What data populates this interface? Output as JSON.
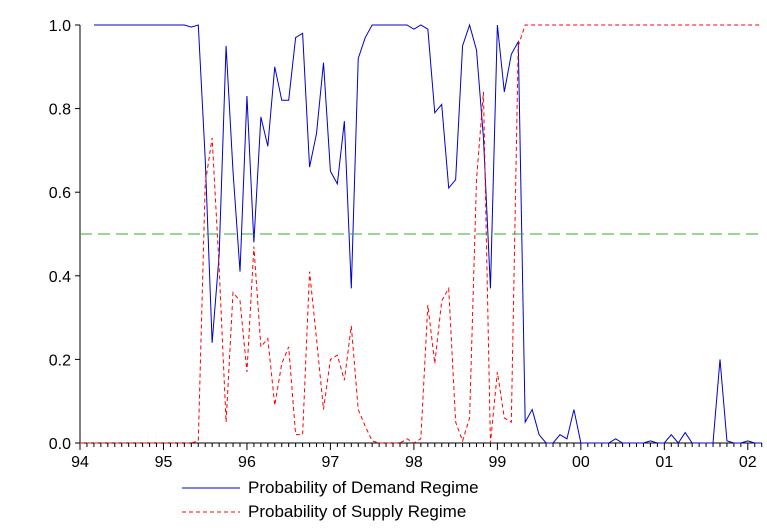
{
  "chart_data": {
    "type": "line",
    "title": "",
    "xlabel": "",
    "ylabel": "",
    "xlim": [
      1994.0,
      2002.17
    ],
    "ylim": [
      0,
      1
    ],
    "grid": false,
    "legend_position": "bottom-center",
    "x_ticks": [
      {
        "value": 1994,
        "label": "94"
      },
      {
        "value": 1995,
        "label": "95"
      },
      {
        "value": 1996,
        "label": "96"
      },
      {
        "value": 1997,
        "label": "97"
      },
      {
        "value": 1998,
        "label": "98"
      },
      {
        "value": 1999,
        "label": "99"
      },
      {
        "value": 2000,
        "label": "00"
      },
      {
        "value": 2001,
        "label": "01"
      },
      {
        "value": 2002,
        "label": "02"
      }
    ],
    "y_ticks": [
      {
        "value": 0.0,
        "label": "0.0"
      },
      {
        "value": 0.2,
        "label": "0.2"
      },
      {
        "value": 0.4,
        "label": "0.4"
      },
      {
        "value": 0.6,
        "label": "0.6"
      },
      {
        "value": 0.8,
        "label": "0.8"
      },
      {
        "value": 1.0,
        "label": "1.0"
      }
    ],
    "series": [
      {
        "name": "Probability of Demand Regime",
        "color": "#0000cc",
        "style": "solid",
        "x": [
          1994.167,
          1994.25,
          1994.333,
          1994.417,
          1994.5,
          1994.583,
          1994.667,
          1994.75,
          1994.833,
          1994.917,
          1995.0,
          1995.083,
          1995.167,
          1995.25,
          1995.333,
          1995.417,
          1995.5,
          1995.583,
          1995.667,
          1995.75,
          1995.833,
          1995.917,
          1996.0,
          1996.083,
          1996.167,
          1996.25,
          1996.333,
          1996.417,
          1996.5,
          1996.583,
          1996.667,
          1996.75,
          1996.833,
          1996.917,
          1997.0,
          1997.083,
          1997.167,
          1997.25,
          1997.333,
          1997.417,
          1997.5,
          1997.583,
          1997.667,
          1997.75,
          1997.833,
          1997.917,
          1998.0,
          1998.083,
          1998.167,
          1998.25,
          1998.333,
          1998.417,
          1998.5,
          1998.583,
          1998.667,
          1998.75,
          1998.833,
          1998.917,
          1999.0,
          1999.083,
          1999.167,
          1999.25,
          1999.333,
          1999.417,
          1999.5,
          1999.583,
          1999.667,
          1999.75,
          1999.833,
          1999.917,
          2000.0,
          2000.083,
          2000.167,
          2000.25,
          2000.333,
          2000.417,
          2000.5,
          2000.583,
          2000.667,
          2000.75,
          2000.833,
          2000.917,
          2001.0,
          2001.083,
          2001.167,
          2001.25,
          2001.333,
          2001.417,
          2001.5,
          2001.583,
          2001.667,
          2001.75,
          2001.833,
          2001.917,
          2002.0,
          2002.083,
          2002.167
        ],
        "values": [
          1.0,
          1.0,
          1.0,
          1.0,
          1.0,
          1.0,
          1.0,
          1.0,
          1.0,
          1.0,
          1.0,
          1.0,
          1.0,
          1.0,
          0.995,
          1.0,
          0.68,
          0.24,
          0.45,
          0.95,
          0.65,
          0.41,
          0.83,
          0.48,
          0.78,
          0.71,
          0.9,
          0.82,
          0.82,
          0.97,
          0.98,
          0.66,
          0.74,
          0.91,
          0.65,
          0.62,
          0.77,
          0.37,
          0.92,
          0.97,
          1.0,
          1.0,
          1.0,
          1.0,
          1.0,
          1.0,
          0.99,
          1.0,
          0.99,
          0.79,
          0.81,
          0.61,
          0.63,
          0.95,
          1.0,
          0.94,
          0.73,
          0.37,
          1.0,
          0.84,
          0.93,
          0.96,
          0.05,
          0.08,
          0.02,
          0.0,
          0.0,
          0.02,
          0.01,
          0.08,
          0.0,
          0.0,
          0.0,
          0.0,
          0.0,
          0.01,
          0.0,
          0.0,
          0.0,
          0.0,
          0.005,
          0.0,
          0.0,
          0.02,
          0.0,
          0.025,
          0.0,
          0.0,
          0.0,
          0.0,
          0.2,
          0.005,
          0.0,
          0.0,
          0.005,
          0.0,
          0.0
        ]
      },
      {
        "name": "Probability of Supply Regime",
        "color": "#ff0000",
        "style": "dashed",
        "x": [
          1994.0,
          1994.083,
          1994.167,
          1994.25,
          1994.333,
          1994.417,
          1994.5,
          1994.583,
          1994.667,
          1994.75,
          1994.833,
          1994.917,
          1995.0,
          1995.083,
          1995.167,
          1995.25,
          1995.333,
          1995.417,
          1995.5,
          1995.583,
          1995.667,
          1995.75,
          1995.833,
          1995.917,
          1996.0,
          1996.083,
          1996.167,
          1996.25,
          1996.333,
          1996.417,
          1996.5,
          1996.583,
          1996.667,
          1996.75,
          1996.833,
          1996.917,
          1997.0,
          1997.083,
          1997.167,
          1997.25,
          1997.333,
          1997.417,
          1997.5,
          1997.583,
          1997.667,
          1997.75,
          1997.833,
          1997.917,
          1998.0,
          1998.083,
          1998.167,
          1998.25,
          1998.333,
          1998.417,
          1998.5,
          1998.583,
          1998.667,
          1998.75,
          1998.833,
          1998.917,
          1999.0,
          1999.083,
          1999.167,
          1999.25,
          1999.333,
          1999.417,
          1999.5,
          1999.583,
          1999.667,
          1999.75,
          1999.833,
          1999.917,
          2000.0,
          2000.083,
          2000.167,
          2000.25,
          2000.333,
          2000.417,
          2000.5,
          2000.583,
          2000.667,
          2000.75,
          2000.833,
          2000.917,
          2001.0,
          2001.083,
          2001.167,
          2001.25,
          2001.333,
          2001.417,
          2001.5,
          2001.583,
          2001.667,
          2001.75,
          2001.833,
          2001.917,
          2002.0,
          2002.083,
          2002.167
        ],
        "values": [
          0.0,
          0.0,
          0.0,
          0.0,
          0.0,
          0.0,
          0.0,
          0.0,
          0.0,
          0.0,
          0.0,
          0.0,
          0.0,
          0.0,
          0.0,
          0.0,
          0.0,
          0.005,
          0.62,
          0.73,
          0.42,
          0.05,
          0.36,
          0.34,
          0.17,
          0.47,
          0.23,
          0.25,
          0.09,
          0.19,
          0.23,
          0.02,
          0.02,
          0.41,
          0.25,
          0.08,
          0.2,
          0.21,
          0.15,
          0.28,
          0.08,
          0.04,
          0.005,
          0.0,
          0.0,
          0.0,
          0.0,
          0.01,
          0.0,
          0.01,
          0.33,
          0.19,
          0.34,
          0.37,
          0.05,
          0.005,
          0.06,
          0.63,
          0.84,
          0.0,
          0.17,
          0.06,
          0.05,
          0.95,
          1.0,
          1.0,
          1.0,
          1.0,
          1.0,
          1.0,
          1.0,
          1.0,
          1.0,
          1.0,
          1.0,
          1.0,
          1.0,
          1.0,
          1.0,
          1.0,
          1.0,
          1.0,
          1.0,
          1.0,
          1.0,
          1.0,
          1.0,
          1.0,
          1.0,
          1.0,
          1.0,
          1.0,
          1.0,
          1.0,
          1.0,
          1.0,
          1.0,
          1.0,
          1.0
        ]
      },
      {
        "name": "",
        "color": "#33aa33",
        "style": "long-dashed",
        "x": [
          1994.0,
          2002.17
        ],
        "values": [
          0.5,
          0.5
        ]
      }
    ]
  }
}
